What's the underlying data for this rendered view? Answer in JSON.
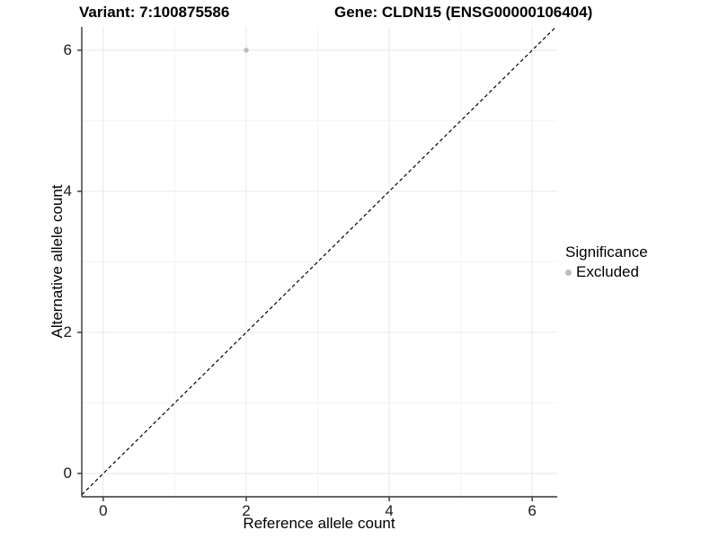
{
  "titles": {
    "variant": "Variant: 7:100875586",
    "gene": "Gene: CLDN15 (ENSG00000106404)"
  },
  "chart_data": {
    "type": "scatter",
    "xlabel": "Reference allele count",
    "ylabel": "Alternative allele count",
    "x_ticks": [
      0,
      2,
      4,
      6
    ],
    "y_ticks": [
      0,
      2,
      4,
      6
    ],
    "x_minor_ticks": [
      1,
      3,
      5
    ],
    "y_minor_ticks": [
      1,
      3,
      5
    ],
    "xlim": [
      -0.3,
      6.35
    ],
    "ylim": [
      -0.33,
      6.33
    ],
    "grid": true,
    "series": [
      {
        "name": "Excluded",
        "color": "#bebebe",
        "points": [
          {
            "x": 2,
            "y": 6
          }
        ]
      }
    ],
    "reference_line": {
      "type": "identity",
      "style": "dashed",
      "color": "#000000"
    },
    "legend": {
      "title": "Significance",
      "position": "right",
      "entries": [
        {
          "label": "Excluded",
          "color": "#bebebe"
        }
      ]
    }
  },
  "colors": {
    "background": "#ffffff",
    "axis": "#333333",
    "grid_major": "#e8e8e8",
    "grid_minor": "#f4f4f4",
    "point": "#bebebe"
  }
}
